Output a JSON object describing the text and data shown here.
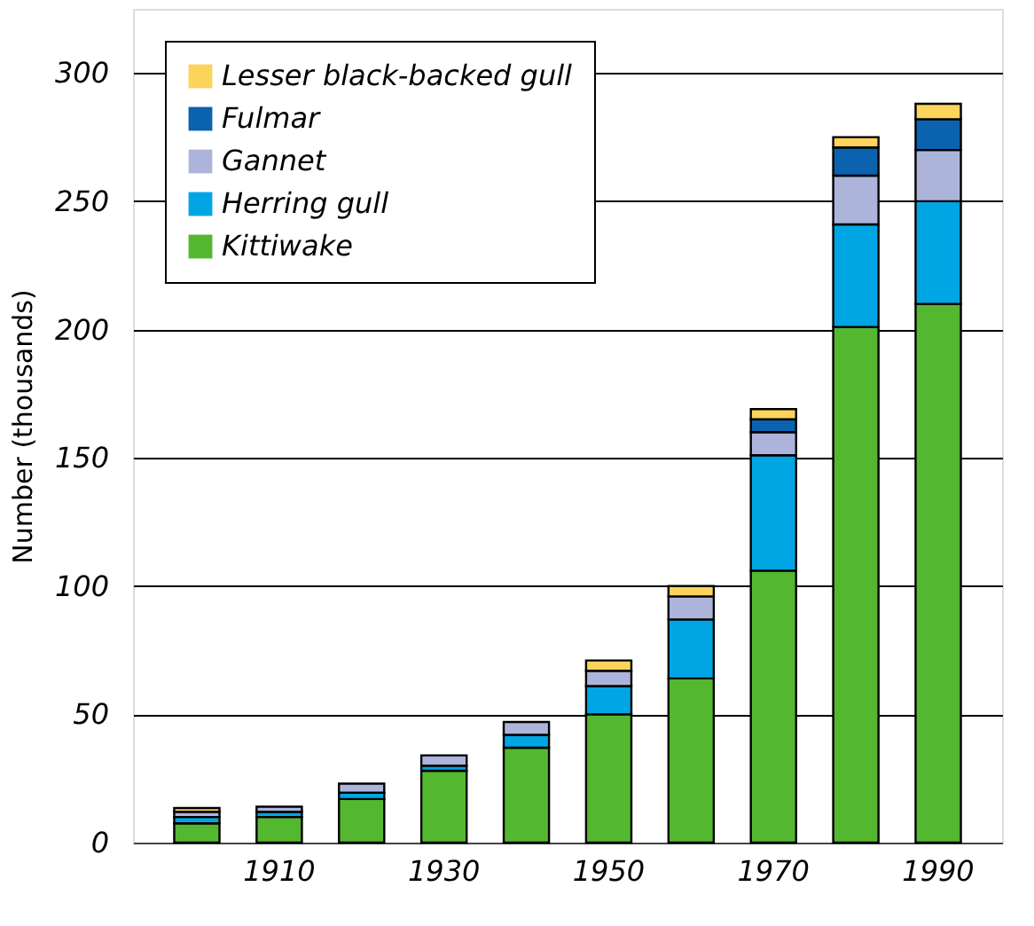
{
  "chart_data": {
    "type": "bar",
    "stacked": true,
    "ylabel": "Number (thousands)",
    "categories": [
      null,
      "1910",
      null,
      "1930",
      null,
      "1950",
      null,
      "1970",
      null,
      "1990"
    ],
    "series": [
      {
        "name": "Kittiwake",
        "color": "#53b82f",
        "values": [
          7.5,
          10,
          17,
          28,
          37,
          50,
          64,
          106,
          201,
          210
        ]
      },
      {
        "name": "Herring gull",
        "color": "#00a6e4",
        "values": [
          2.5,
          2,
          2.5,
          2,
          5,
          11,
          23,
          45,
          40,
          40
        ]
      },
      {
        "name": "Gannet",
        "color": "#adb4dc",
        "values": [
          2,
          2,
          3.5,
          4,
          5,
          6,
          9,
          9,
          19,
          20
        ]
      },
      {
        "name": "Fulmar",
        "color": "#0b62ae",
        "values": [
          null,
          null,
          null,
          null,
          null,
          null,
          null,
          5,
          11,
          12
        ]
      },
      {
        "name": "Lesser black-backed gull",
        "color": "#fcd35b",
        "values": [
          1.5,
          null,
          null,
          null,
          null,
          4,
          4,
          4,
          4,
          6
        ]
      }
    ],
    "ylim": [
      0,
      325
    ],
    "yticks": [
      0,
      50,
      100,
      150,
      200,
      250,
      300
    ],
    "grid": "y",
    "legend": "top left"
  }
}
